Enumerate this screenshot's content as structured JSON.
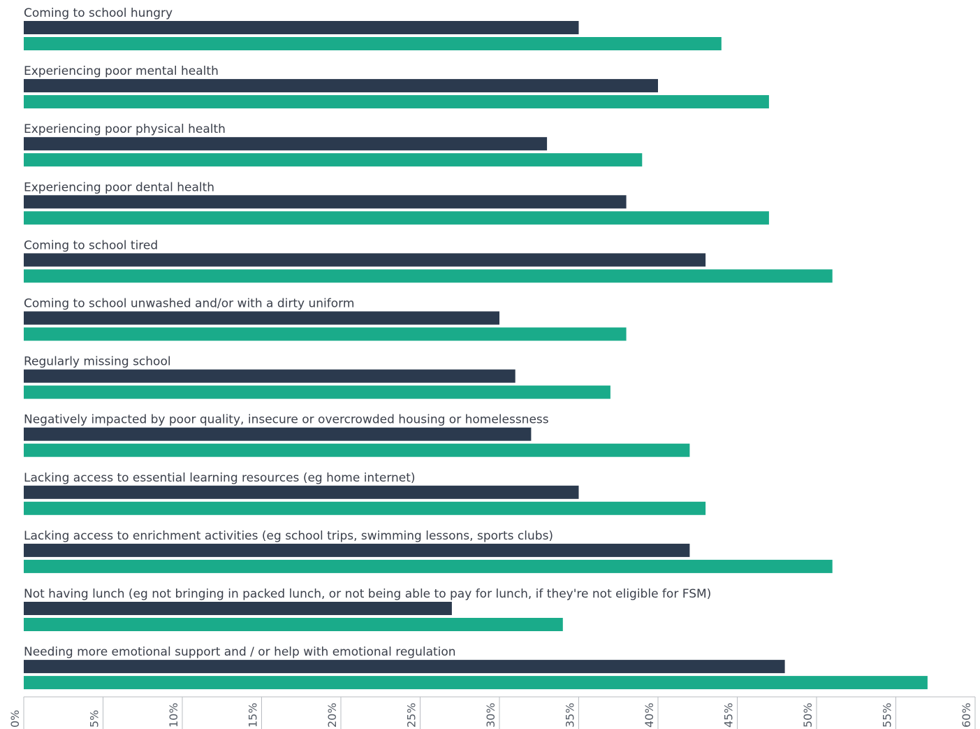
{
  "chart_data": {
    "type": "bar",
    "orientation": "horizontal",
    "title": "",
    "xlabel": "",
    "ylabel": "",
    "xlim": [
      0,
      60
    ],
    "tick_values": [
      0,
      5,
      10,
      15,
      20,
      25,
      30,
      35,
      40,
      45,
      50,
      55,
      60
    ],
    "tick_labels": [
      "0%",
      "5%",
      "10%",
      "15%",
      "20%",
      "25%",
      "30%",
      "35%",
      "40%",
      "45%",
      "50%",
      "55%",
      "60%"
    ],
    "grid": false,
    "legend": "none",
    "categories": [
      "Coming to school hungry",
      "Experiencing poor mental health",
      "Experiencing poor physical health",
      "Experiencing poor dental health",
      "Coming to school tired",
      "Coming to school unwashed and/or with a dirty uniform",
      "Regularly missing school",
      "Negatively impacted by poor quality, insecure or overcrowded housing or homelessness",
      "Lacking access to essential learning resources (eg home internet)",
      "Lacking access to enrichment activities (eg school trips, swimming lessons, sports clubs)",
      "Not having lunch (eg not bringing in packed lunch, or not being able to pay for lunch, if they're not eligible for FSM)",
      "Needing more emotional support and / or help with emotional regulation"
    ],
    "series": [
      {
        "color": "#2b3a4e",
        "values": [
          35,
          40,
          33,
          38,
          43,
          30,
          31,
          32,
          35,
          42,
          27,
          48
        ]
      },
      {
        "color": "#1aab8a",
        "values": [
          44,
          47,
          39,
          47,
          51,
          38,
          37,
          42,
          43,
          51,
          34,
          57
        ]
      }
    ]
  }
}
